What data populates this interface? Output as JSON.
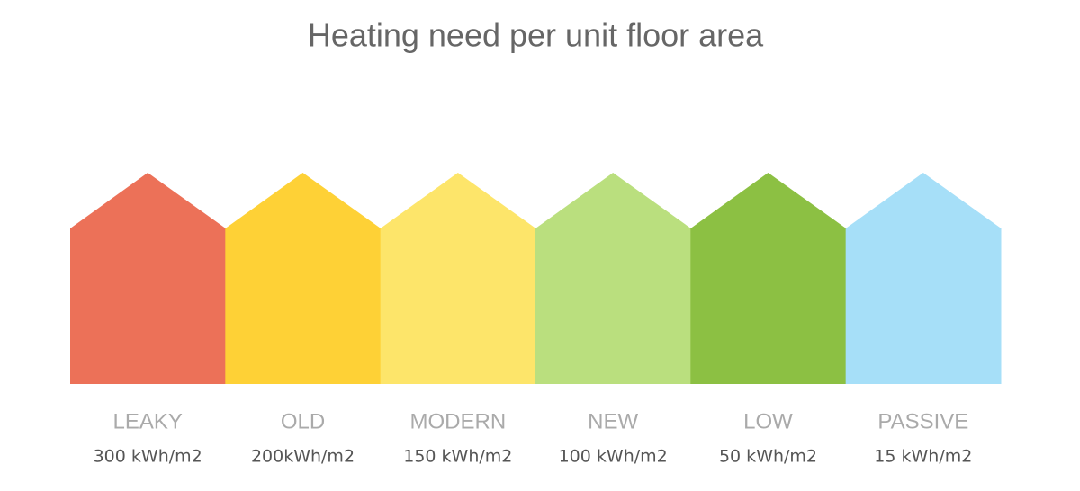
{
  "title": "Heating need per unit floor area",
  "houses": [
    {
      "label": "LEAKY",
      "value_text": "300 kWh/m2",
      "color": "#ec7158"
    },
    {
      "label": "OLD",
      "value_text": "200kWh/m2",
      "color": "#fed136"
    },
    {
      "label": "MODERN",
      "value_text": "150 kWh/m2",
      "color": "#fde56a"
    },
    {
      "label": "NEW",
      "value_text": "100 kWh/m2",
      "color": "#badf7e"
    },
    {
      "label": "LOW",
      "value_text": "50 kWh/m2",
      "color": "#8cc043"
    },
    {
      "label": "PASSIVE",
      "value_text": "15 kWh/m2",
      "color": "#a6dff8"
    }
  ]
}
